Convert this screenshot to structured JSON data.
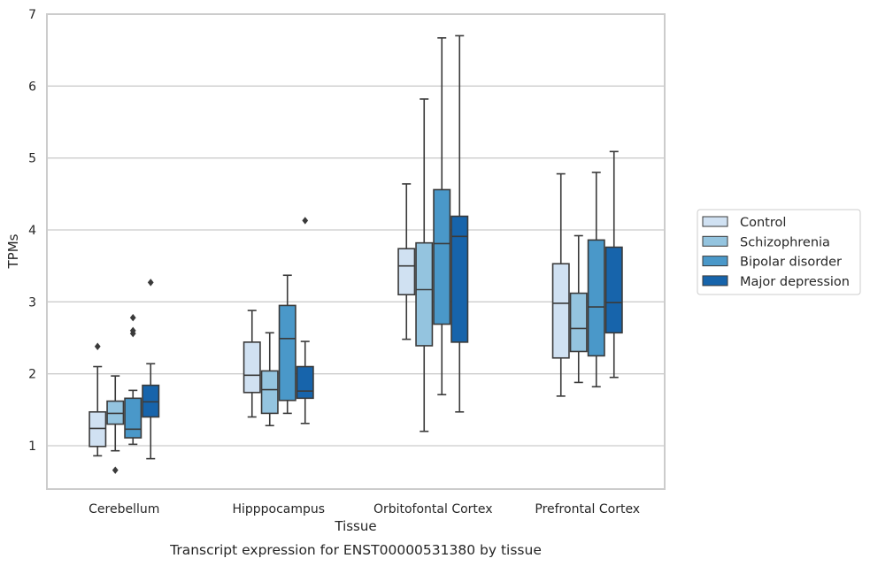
{
  "chart_data": {
    "type": "box",
    "title": "",
    "caption": "Transcript expression for ENST00000531380 by tissue",
    "xlabel": "Tissue",
    "ylabel": "TPMs",
    "ylim": [
      0.38,
      7.0
    ],
    "yticks": [
      1,
      2,
      3,
      4,
      5,
      6,
      7
    ],
    "grid": "horizontal",
    "legend_position": "right",
    "categories": [
      "Cerebellum",
      "Hipppocampus",
      "Orbitofontal Cortex",
      "Prefrontal Cortex"
    ],
    "series": [
      {
        "name": "Control",
        "color": "#d0e1f2",
        "boxes": [
          {
            "whislo": 0.86,
            "q1": 0.99,
            "med": 1.24,
            "q3": 1.47,
            "whishi": 2.1,
            "fliers": [
              2.38
            ]
          },
          {
            "whislo": 1.4,
            "q1": 1.74,
            "med": 1.98,
            "q3": 2.44,
            "whishi": 2.88,
            "fliers": []
          },
          {
            "whislo": 2.48,
            "q1": 3.1,
            "med": 3.5,
            "q3": 3.74,
            "whishi": 4.64,
            "fliers": []
          },
          {
            "whislo": 1.69,
            "q1": 2.22,
            "med": 2.98,
            "q3": 3.53,
            "whishi": 4.78,
            "fliers": []
          }
        ]
      },
      {
        "name": "Schizophrenia",
        "color": "#94c4df",
        "boxes": [
          {
            "whislo": 0.93,
            "q1": 1.3,
            "med": 1.45,
            "q3": 1.62,
            "whishi": 1.97,
            "fliers": [
              0.66
            ]
          },
          {
            "whislo": 1.28,
            "q1": 1.45,
            "med": 1.78,
            "q3": 2.04,
            "whishi": 2.57,
            "fliers": []
          },
          {
            "whislo": 1.2,
            "q1": 2.39,
            "med": 3.17,
            "q3": 3.82,
            "whishi": 5.82,
            "fliers": []
          },
          {
            "whislo": 1.88,
            "q1": 2.31,
            "med": 2.63,
            "q3": 3.12,
            "whishi": 3.92,
            "fliers": []
          }
        ]
      },
      {
        "name": "Bipolar disorder",
        "color": "#4a98c9",
        "boxes": [
          {
            "whislo": 1.02,
            "q1": 1.11,
            "med": 1.23,
            "q3": 1.66,
            "whishi": 1.77,
            "fliers": [
              2.56,
              2.6,
              2.78
            ]
          },
          {
            "whislo": 1.45,
            "q1": 1.63,
            "med": 2.49,
            "q3": 2.95,
            "whishi": 3.37,
            "fliers": []
          },
          {
            "whislo": 1.71,
            "q1": 2.69,
            "med": 3.81,
            "q3": 4.56,
            "whishi": 6.67,
            "fliers": []
          },
          {
            "whislo": 1.82,
            "q1": 2.25,
            "med": 2.93,
            "q3": 3.86,
            "whishi": 4.8,
            "fliers": []
          }
        ]
      },
      {
        "name": "Major depression",
        "color": "#1764ab",
        "boxes": [
          {
            "whislo": 0.82,
            "q1": 1.4,
            "med": 1.61,
            "q3": 1.84,
            "whishi": 2.14,
            "fliers": [
              3.27
            ]
          },
          {
            "whislo": 1.31,
            "q1": 1.66,
            "med": 1.76,
            "q3": 2.1,
            "whishi": 2.45,
            "fliers": [
              4.13
            ]
          },
          {
            "whislo": 1.47,
            "q1": 2.44,
            "med": 3.91,
            "q3": 4.19,
            "whishi": 6.7,
            "fliers": []
          },
          {
            "whislo": 1.95,
            "q1": 2.57,
            "med": 2.99,
            "q3": 3.76,
            "whishi": 5.09,
            "fliers": []
          }
        ]
      }
    ]
  }
}
